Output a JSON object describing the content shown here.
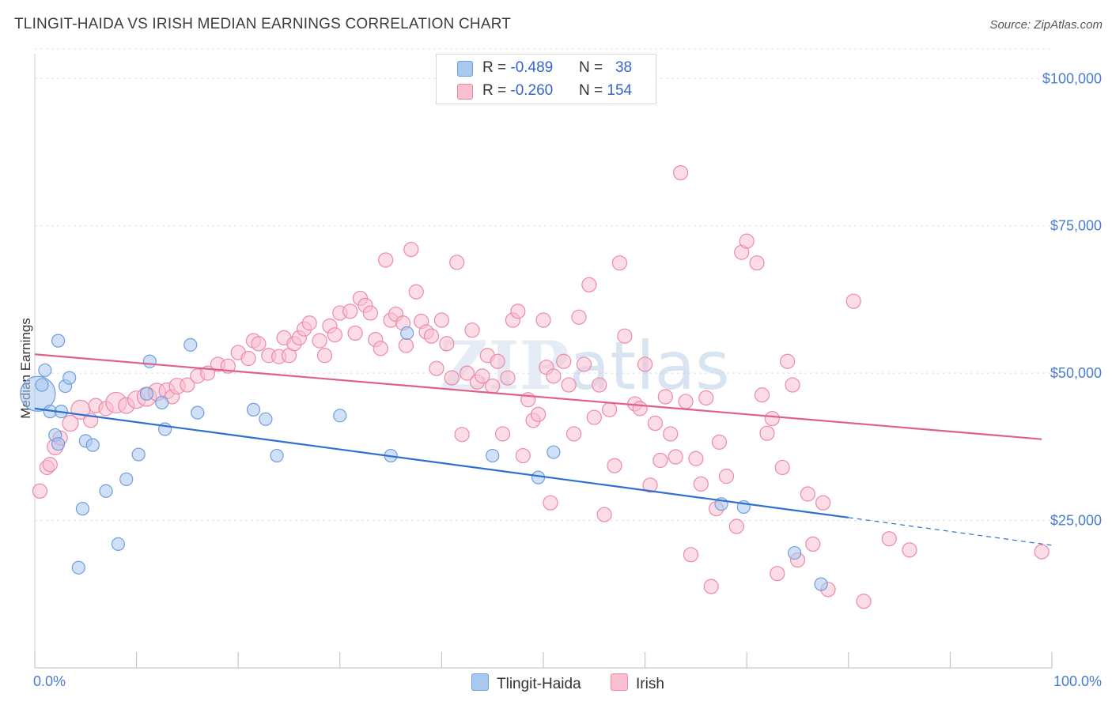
{
  "title": "TLINGIT-HAIDA VS IRISH MEDIAN EARNINGS CORRELATION CHART",
  "source_label": "Source: ZipAtlas.com",
  "watermark": "ZIPatlas",
  "legend": [
    {
      "r_label": "R = ",
      "r_value": "-0.489",
      "n_label": "N = ",
      "n_value": "38",
      "color": "#a9c8f0",
      "border": "#6f9ee0"
    },
    {
      "r_label": "R = ",
      "r_value": "-0.260",
      "n_label": "N = ",
      "n_value": "154",
      "color": "#f9c0d0",
      "border": "#ec8aa8"
    }
  ],
  "bottom_legend": [
    {
      "name": "Tlingit-Haida",
      "color": "#a9c8f0",
      "border": "#6f9ee0"
    },
    {
      "name": "Irish",
      "color": "#f9c0d0",
      "border": "#ec8aa8"
    }
  ],
  "chart_data": {
    "type": "scatter",
    "title": "TLINGIT-HAIDA VS IRISH MEDIAN EARNINGS CORRELATION CHART",
    "xlabel": "",
    "ylabel": "Median Earnings",
    "xlim": [
      0,
      100
    ],
    "ylim": [
      0,
      105000
    ],
    "x_tick_labels": [
      "0.0%",
      "100.0%"
    ],
    "y_ticks": [
      25000,
      50000,
      75000,
      100000
    ],
    "y_tick_labels": [
      "$25,000",
      "$50,000",
      "$75,000",
      "$100,000"
    ],
    "grid": true,
    "legend_position": "top-center",
    "series": [
      {
        "name": "Tlingit-Haida",
        "color": "#6f9ee0",
        "fill": "#a9c8f0",
        "line_color": "#2f6fd1",
        "trend": {
          "x0": 0,
          "y0": 44000,
          "x1": 80,
          "y1": 25500,
          "dashed_to_x": 100,
          "dashed_to_y": 20800
        },
        "points": [
          [
            0.3,
            46500,
            22
          ],
          [
            0.7,
            48000,
            8
          ],
          [
            1,
            50500,
            8
          ],
          [
            1.5,
            43500,
            8
          ],
          [
            2,
            39500,
            8
          ],
          [
            2.3,
            38000,
            8
          ],
          [
            2.3,
            55500,
            8
          ],
          [
            2.6,
            43500,
            8
          ],
          [
            3,
            47800,
            8
          ],
          [
            3.4,
            49200,
            8
          ],
          [
            4.3,
            17000,
            8
          ],
          [
            4.7,
            27000,
            8
          ],
          [
            5,
            38500,
            8
          ],
          [
            5.7,
            37800,
            8
          ],
          [
            7,
            30000,
            8
          ],
          [
            8.2,
            21000,
            8
          ],
          [
            9,
            32000,
            8
          ],
          [
            10.2,
            36200,
            8
          ],
          [
            11,
            46500,
            8
          ],
          [
            11.3,
            52000,
            8
          ],
          [
            12.5,
            45000,
            8
          ],
          [
            12.8,
            40500,
            8
          ],
          [
            15.3,
            54800,
            8
          ],
          [
            16,
            43300,
            8
          ],
          [
            21.5,
            43800,
            8
          ],
          [
            22.7,
            42200,
            8
          ],
          [
            23.8,
            36000,
            8
          ],
          [
            30,
            42800,
            8
          ],
          [
            35,
            36000,
            8
          ],
          [
            36.6,
            56800,
            8
          ],
          [
            45,
            36000,
            8
          ],
          [
            49.5,
            32300,
            8
          ],
          [
            51,
            36600,
            8
          ],
          [
            67.5,
            27800,
            8
          ],
          [
            69.7,
            27300,
            8
          ],
          [
            74.7,
            19500,
            8
          ],
          [
            77.3,
            14200,
            8
          ]
        ]
      },
      {
        "name": "Irish",
        "color": "#ec8aa8",
        "fill": "#f9c0d0",
        "line_color": "#e0608a",
        "trend": {
          "x0": 0,
          "y0": 53200,
          "x1": 99,
          "y1": 38800
        },
        "points": [
          [
            0.5,
            30000,
            9
          ],
          [
            1.2,
            34000,
            9
          ],
          [
            1.5,
            34500,
            9
          ],
          [
            2,
            37500,
            10
          ],
          [
            2.5,
            39000,
            9
          ],
          [
            3.5,
            41500,
            10
          ],
          [
            4.5,
            43800,
            12
          ],
          [
            5.5,
            42000,
            9
          ],
          [
            6,
            44500,
            9
          ],
          [
            7,
            44000,
            9
          ],
          [
            8,
            45000,
            13
          ],
          [
            9,
            44500,
            10
          ],
          [
            10,
            45500,
            11
          ],
          [
            11,
            46000,
            12
          ],
          [
            12,
            46800,
            11
          ],
          [
            13,
            47000,
            10
          ],
          [
            13.5,
            46000,
            9
          ],
          [
            14,
            47800,
            10
          ],
          [
            15,
            48000,
            9
          ],
          [
            16,
            49500,
            9
          ],
          [
            17,
            50000,
            9
          ],
          [
            18,
            51500,
            9
          ],
          [
            19,
            51200,
            9
          ],
          [
            20,
            53500,
            9
          ],
          [
            21,
            52500,
            9
          ],
          [
            21.5,
            55500,
            9
          ],
          [
            22,
            55000,
            9
          ],
          [
            23,
            53000,
            9
          ],
          [
            24,
            52800,
            9
          ],
          [
            24.5,
            56000,
            9
          ],
          [
            25,
            53000,
            9
          ],
          [
            25.5,
            55000,
            9
          ],
          [
            26,
            56000,
            9
          ],
          [
            26.5,
            57500,
            9
          ],
          [
            27,
            58500,
            9
          ],
          [
            28,
            55500,
            9
          ],
          [
            28.5,
            53000,
            9
          ],
          [
            29,
            58000,
            9
          ],
          [
            29.5,
            56500,
            9
          ],
          [
            30,
            60200,
            9
          ],
          [
            31,
            60500,
            9
          ],
          [
            31.5,
            56800,
            9
          ],
          [
            32,
            62700,
            9
          ],
          [
            32.5,
            61500,
            9
          ],
          [
            33,
            60200,
            9
          ],
          [
            33.5,
            55700,
            9
          ],
          [
            34,
            54200,
            9
          ],
          [
            34.5,
            69200,
            9
          ],
          [
            35,
            59000,
            9
          ],
          [
            35.5,
            60000,
            9
          ],
          [
            36.2,
            58500,
            9
          ],
          [
            36.5,
            54700,
            9
          ],
          [
            37,
            71000,
            9
          ],
          [
            37.5,
            63800,
            9
          ],
          [
            38,
            58800,
            9
          ],
          [
            38.5,
            57000,
            9
          ],
          [
            39,
            56300,
            9
          ],
          [
            39.5,
            50800,
            9
          ],
          [
            40,
            59000,
            9
          ],
          [
            40.5,
            55000,
            9
          ],
          [
            41,
            49200,
            9
          ],
          [
            41.5,
            68800,
            9
          ],
          [
            42,
            39600,
            9
          ],
          [
            42.5,
            50000,
            9
          ],
          [
            43,
            57300,
            9
          ],
          [
            43.5,
            48500,
            9
          ],
          [
            44,
            49500,
            9
          ],
          [
            44.5,
            53000,
            9
          ],
          [
            45,
            47800,
            9
          ],
          [
            45.5,
            52000,
            9
          ],
          [
            46,
            39700,
            9
          ],
          [
            46.5,
            49200,
            9
          ],
          [
            47,
            59000,
            9
          ],
          [
            47.5,
            60500,
            9
          ],
          [
            48,
            36000,
            9
          ],
          [
            48.5,
            45500,
            9
          ],
          [
            49,
            42000,
            9
          ],
          [
            49.5,
            43000,
            9
          ],
          [
            50,
            59000,
            9
          ],
          [
            50.3,
            51000,
            9
          ],
          [
            50.7,
            28000,
            9
          ],
          [
            51,
            49500,
            9
          ],
          [
            52,
            52000,
            9
          ],
          [
            52.5,
            48000,
            9
          ],
          [
            53,
            39700,
            9
          ],
          [
            53.5,
            59500,
            9
          ],
          [
            54,
            51500,
            9
          ],
          [
            54.5,
            65000,
            9
          ],
          [
            55,
            42500,
            9
          ],
          [
            55.5,
            48000,
            9
          ],
          [
            56,
            26000,
            9
          ],
          [
            56.5,
            43800,
            9
          ],
          [
            57,
            34300,
            9
          ],
          [
            57.5,
            68700,
            9
          ],
          [
            58,
            56300,
            9
          ],
          [
            59,
            44800,
            9
          ],
          [
            59.5,
            44000,
            9
          ],
          [
            60,
            51500,
            9
          ],
          [
            60.5,
            31000,
            9
          ],
          [
            61,
            41500,
            9
          ],
          [
            61.5,
            35200,
            9
          ],
          [
            62,
            46000,
            9
          ],
          [
            62.5,
            39700,
            9
          ],
          [
            63,
            35800,
            9
          ],
          [
            63.5,
            84000,
            9
          ],
          [
            64,
            45200,
            9
          ],
          [
            64.5,
            19200,
            9
          ],
          [
            65,
            35500,
            9
          ],
          [
            65.5,
            31200,
            9
          ],
          [
            66,
            45800,
            9
          ],
          [
            66.5,
            13800,
            9
          ],
          [
            67,
            27000,
            9
          ],
          [
            67.3,
            38300,
            9
          ],
          [
            68,
            32500,
            9
          ],
          [
            69,
            24000,
            9
          ],
          [
            69.5,
            70500,
            9
          ],
          [
            70,
            72400,
            9
          ],
          [
            71,
            68700,
            9
          ],
          [
            71.5,
            46300,
            9
          ],
          [
            72,
            39800,
            9
          ],
          [
            72.5,
            42300,
            9
          ],
          [
            73,
            16000,
            9
          ],
          [
            73.5,
            34000,
            9
          ],
          [
            74,
            52000,
            9
          ],
          [
            74.5,
            48000,
            9
          ],
          [
            75,
            18300,
            9
          ],
          [
            76,
            29500,
            9
          ],
          [
            76.5,
            21000,
            9
          ],
          [
            77.5,
            28000,
            9
          ],
          [
            78,
            13300,
            9
          ],
          [
            80.5,
            62200,
            9
          ],
          [
            81.5,
            11300,
            9
          ],
          [
            84,
            21900,
            9
          ],
          [
            86,
            20000,
            9
          ],
          [
            99,
            19700,
            9
          ]
        ]
      }
    ]
  }
}
